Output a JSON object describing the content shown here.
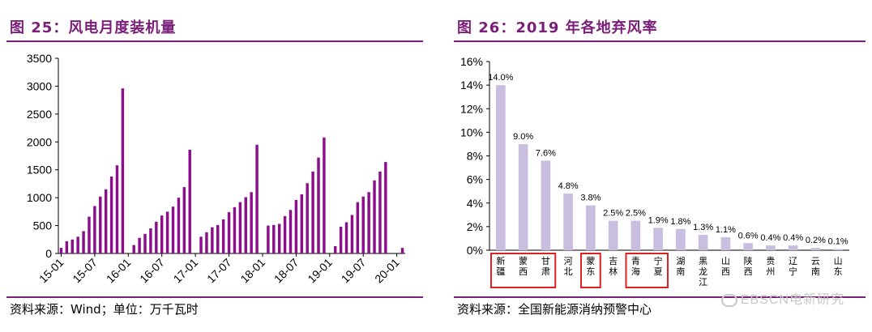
{
  "left": {
    "title": "图 25：风电月度装机量",
    "source": "资料来源：Wind；单位：万千瓦时",
    "chart_data": {
      "type": "bar",
      "title": "",
      "xlabel": "",
      "ylabel": "",
      "ylim": [
        0,
        3500
      ],
      "yticks": [
        0,
        500,
        1000,
        1500,
        2000,
        2500,
        3000,
        3500
      ],
      "grid": false,
      "color": "#8b0f8b",
      "categories": [
        "15-01",
        "15-02",
        "15-03",
        "15-04",
        "15-05",
        "15-06",
        "15-07",
        "15-08",
        "15-09",
        "15-10",
        "15-11",
        "15-12",
        "16-01",
        "16-02",
        "16-03",
        "16-04",
        "16-05",
        "16-06",
        "16-07",
        "16-08",
        "16-09",
        "16-10",
        "16-11",
        "16-12",
        "17-01",
        "17-02",
        "17-03",
        "17-04",
        "17-05",
        "17-06",
        "17-07",
        "17-08",
        "17-09",
        "17-10",
        "17-11",
        "17-12",
        "18-01",
        "18-02",
        "18-03",
        "18-04",
        "18-05",
        "18-06",
        "18-07",
        "18-08",
        "18-09",
        "18-10",
        "18-11",
        "18-12",
        "19-01",
        "19-02",
        "19-03",
        "19-04",
        "19-05",
        "19-06",
        "19-07",
        "19-08",
        "19-09",
        "19-10",
        "19-11",
        "19-12",
        "20-01",
        "20-02"
      ],
      "tick_labels": [
        "15-01",
        "15-07",
        "16-01",
        "16-07",
        "17-01",
        "17-07",
        "18-01",
        "18-07",
        "19-01",
        "19-07",
        "20-01"
      ],
      "values": [
        100,
        220,
        250,
        300,
        400,
        660,
        850,
        1020,
        1150,
        1380,
        1580,
        2960,
        null,
        150,
        280,
        350,
        450,
        570,
        680,
        750,
        840,
        1000,
        1190,
        1860,
        null,
        300,
        380,
        470,
        510,
        610,
        740,
        830,
        920,
        1010,
        1100,
        1950,
        null,
        500,
        510,
        530,
        670,
        780,
        960,
        1060,
        1260,
        1470,
        1720,
        2080,
        null,
        130,
        480,
        560,
        690,
        920,
        1020,
        1100,
        1310,
        1470,
        1640,
        null,
        null,
        100
      ]
    }
  },
  "right": {
    "title": "图 26：2019 年各地弃风率",
    "source": "资料来源：全国新能源消纳预警中心",
    "watermark": "EBSCN电新研究",
    "chart_data": {
      "type": "bar",
      "title": "",
      "xlabel": "",
      "ylabel": "",
      "ylim": [
        0,
        16
      ],
      "yticks": [
        "0%",
        "2%",
        "4%",
        "6%",
        "8%",
        "10%",
        "12%",
        "14%",
        "16%"
      ],
      "grid": false,
      "color": "#c9bde0",
      "categories": [
        "新疆",
        "蒙西",
        "甘肃",
        "河北",
        "蒙东",
        "吉林",
        "青海",
        "宁夏",
        "湖南",
        "黑龙江",
        "山西",
        "陕西",
        "贵州",
        "辽宁",
        "云南",
        "山东"
      ],
      "values": [
        14.0,
        9.0,
        7.6,
        4.8,
        3.8,
        2.5,
        2.5,
        1.9,
        1.8,
        1.3,
        1.1,
        0.6,
        0.4,
        0.4,
        0.2,
        0.1
      ],
      "labels": [
        "14.0%",
        "9.0%",
        "7.6%",
        "4.8%",
        "3.8%",
        "2.5%",
        "2.5%",
        "1.9%",
        "1.8%",
        "1.3%",
        "1.1%",
        "0.6%",
        "0.4%",
        "0.4%",
        "0.2%",
        "0.1%"
      ],
      "highlight_groups": [
        [
          0,
          2
        ],
        [
          4,
          4
        ],
        [
          6,
          7
        ]
      ],
      "highlight_color": "#e02020"
    }
  }
}
